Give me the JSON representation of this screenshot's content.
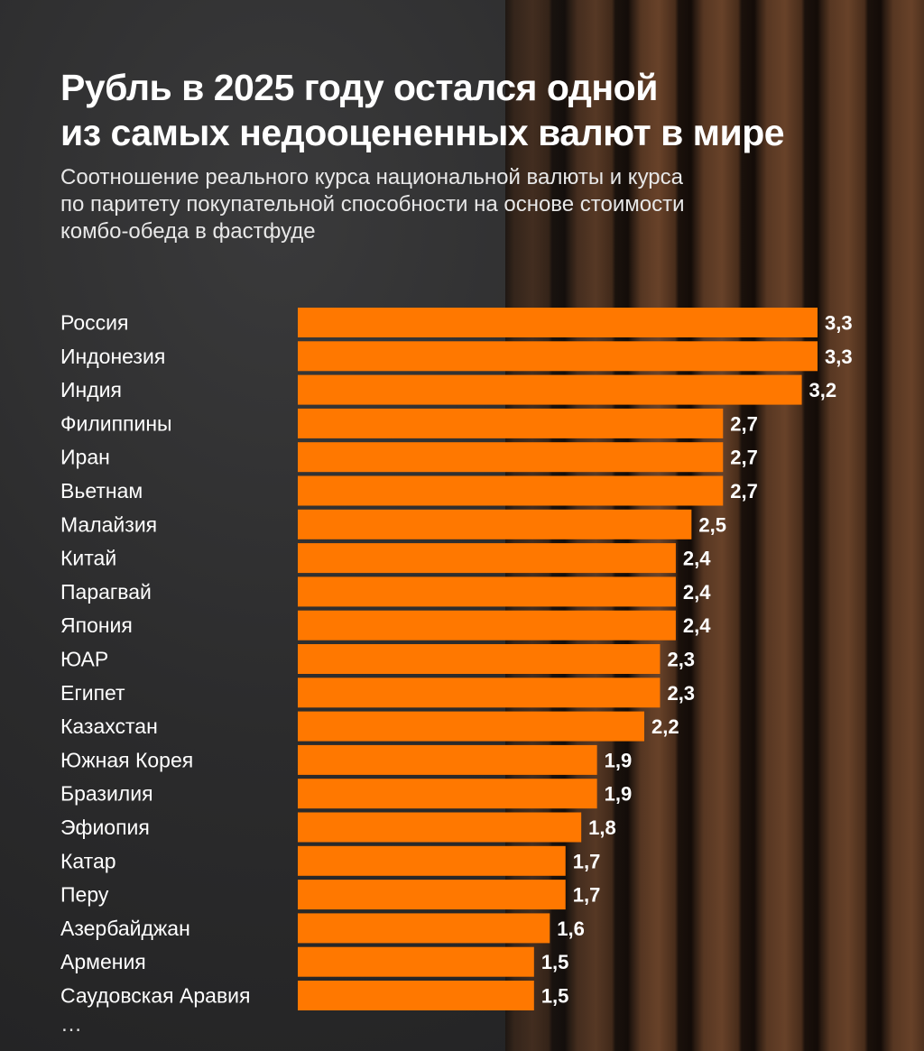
{
  "title_line1": "Рубль в 2025 году остался одной",
  "title_line2": "из самых недооцененных валют в мире",
  "subtitle_line1": "Соотношение реального курса национальной валюты и курса",
  "subtitle_line2": "по паритету покупательной способности на основе стоимости",
  "subtitle_line3": "комбо-обеда в фастфуде",
  "more_indicator": "…",
  "colors": {
    "bar": "#ff7800",
    "text": "#ffffff"
  },
  "chart_data": {
    "type": "bar",
    "orientation": "horizontal",
    "categories": [
      "Россия",
      "Индонезия",
      "Индия",
      "Филиппины",
      "Иран",
      "Вьетнам",
      "Малайзия",
      "Китай",
      "Парагвай",
      "Япония",
      "ЮАР",
      "Египет",
      "Казахстан",
      "Южная Корея",
      "Бразилия",
      "Эфиопия",
      "Катар",
      "Перу",
      "Азербайджан",
      "Армения",
      "Саудовская Аравия"
    ],
    "values": [
      3.3,
      3.3,
      3.2,
      2.7,
      2.7,
      2.7,
      2.5,
      2.4,
      2.4,
      2.4,
      2.3,
      2.3,
      2.2,
      1.9,
      1.9,
      1.8,
      1.7,
      1.7,
      1.6,
      1.5,
      1.5
    ],
    "value_labels": [
      "3,3",
      "3,3",
      "3,2",
      "2,7",
      "2,7",
      "2,7",
      "2,5",
      "2,4",
      "2,4",
      "2,4",
      "2,3",
      "2,3",
      "2,2",
      "1,9",
      "1,9",
      "1,8",
      "1,7",
      "1,7",
      "1,6",
      "1,5",
      "1,5"
    ],
    "title": "Рубль в 2025 году остался одной из самых недооцененных валют в мире",
    "subtitle": "Соотношение реального курса национальной валюты и курса по паритету покупательной способности на основе стоимости комбо-обеда в фастфуде",
    "xlabel": "",
    "ylabel": "",
    "xlim": [
      0,
      3.3
    ],
    "grid": false,
    "legend": "none"
  }
}
